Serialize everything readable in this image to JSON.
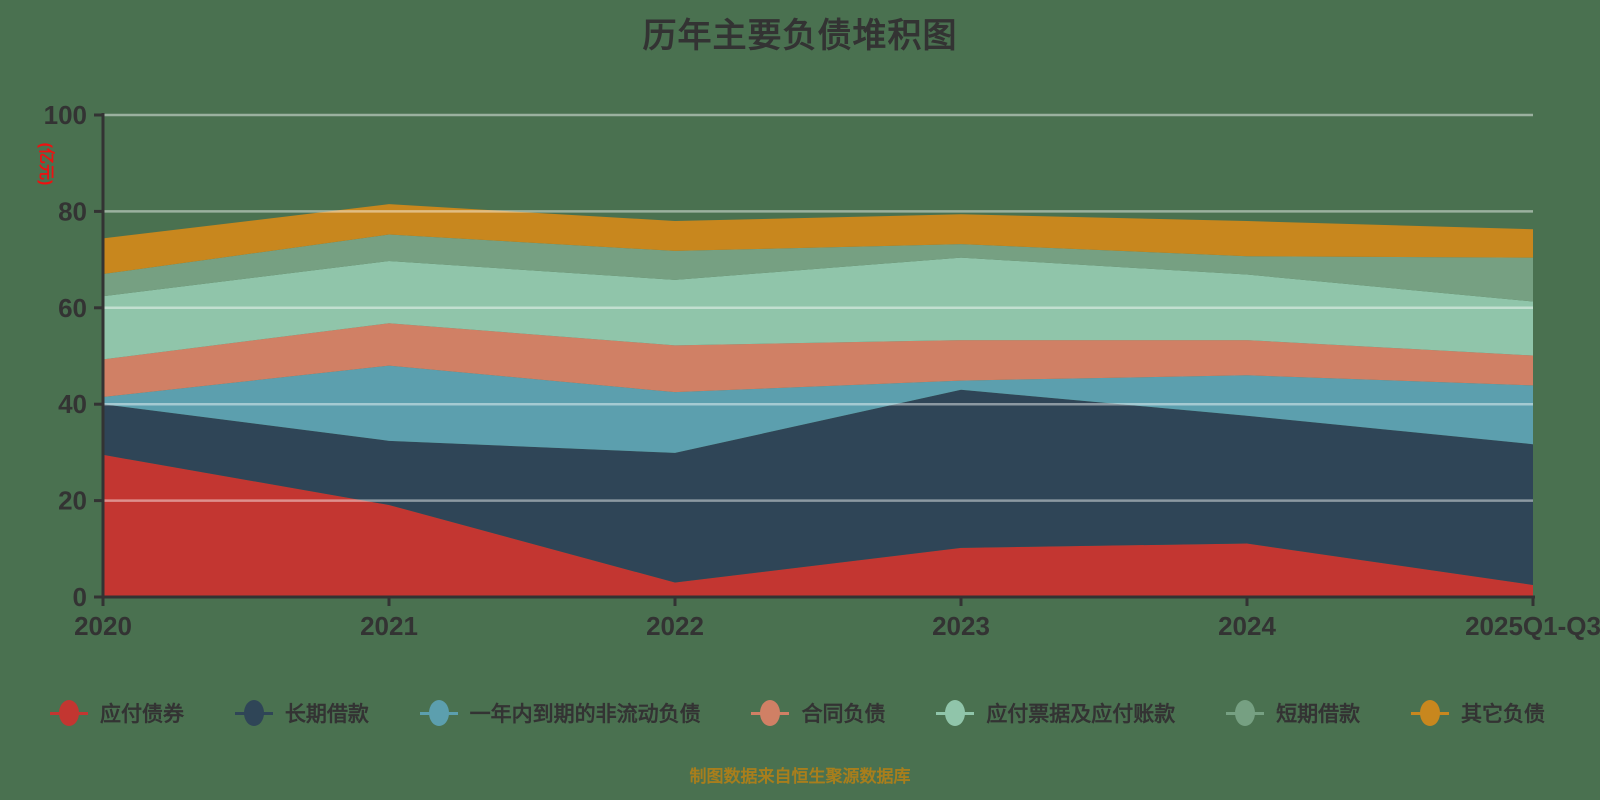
{
  "title": "历年主要负债堆积图",
  "footer": "制图数据来自恒生聚源数据库",
  "colors": {
    "background": "#4a7150",
    "title_text": "#333333",
    "axis_line": "#333333",
    "tick_label": "#333333",
    "y_axis_name": "#ee1111",
    "legend_text": "#333333",
    "footer_text": "#a87e1c",
    "gridline": "rgba(255,255,255,0.45)"
  },
  "chart_data": {
    "type": "area",
    "stacked": true,
    "title": "历年主要负债堆积图",
    "xlabel": "",
    "ylabel": "(亿元)",
    "ylim": [
      0,
      100
    ],
    "yticks": [
      0,
      20,
      40,
      60,
      80,
      100
    ],
    "grid": true,
    "legend_position": "bottom",
    "categories": [
      "2020",
      "2021",
      "2022",
      "2023",
      "2024",
      "2025Q1-Q3"
    ],
    "series": [
      {
        "name": "应付债券",
        "color": "#c33631",
        "values": [
          29.5,
          19.1,
          3.0,
          10.2,
          11.1,
          2.5
        ]
      },
      {
        "name": "长期借款",
        "color": "#2f4557",
        "values": [
          10.5,
          13.3,
          26.9,
          32.8,
          26.5,
          29.2
        ]
      },
      {
        "name": "一年内到期的非流动负债",
        "color": "#5c9fae",
        "values": [
          1.5,
          15.6,
          12.6,
          1.9,
          8.4,
          12.2
        ]
      },
      {
        "name": "合同负债",
        "color": "#d08065",
        "values": [
          7.8,
          8.8,
          9.7,
          8.4,
          7.3,
          6.2
        ]
      },
      {
        "name": "应付票据及应付账款",
        "color": "#90c5aa",
        "values": [
          13.1,
          12.9,
          13.6,
          17.1,
          13.6,
          11.2
        ]
      },
      {
        "name": "短期借款",
        "color": "#76a082",
        "values": [
          4.6,
          5.5,
          6.0,
          2.8,
          3.8,
          9.1
        ]
      },
      {
        "name": "其它负债",
        "color": "#c8871e",
        "values": [
          7.4,
          6.3,
          6.2,
          6.2,
          7.3,
          5.9
        ]
      }
    ]
  }
}
